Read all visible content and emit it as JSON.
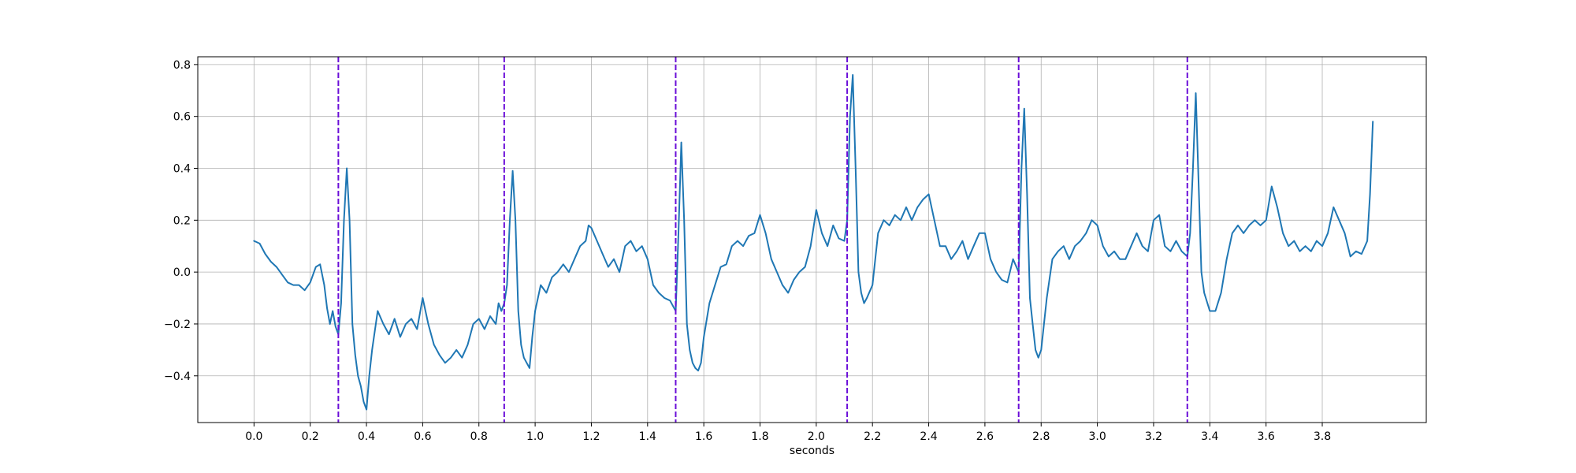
{
  "chart_data": {
    "type": "line",
    "xlabel": "seconds",
    "ylabel": "",
    "xlim": [
      -0.2,
      4.17
    ],
    "ylim": [
      -0.58,
      0.83
    ],
    "grid": true,
    "x_ticks": [
      0.0,
      0.2,
      0.4,
      0.6,
      0.8,
      1.0,
      1.2,
      1.4,
      1.6,
      1.8,
      2.0,
      2.2,
      2.4,
      2.6,
      2.8,
      3.0,
      3.2,
      3.4,
      3.6,
      3.8
    ],
    "x_tick_labels": [
      "0.0",
      "0.2",
      "0.4",
      "0.6",
      "0.8",
      "1.0",
      "1.2",
      "1.4",
      "1.6",
      "1.8",
      "2.0",
      "2.2",
      "2.4",
      "2.6",
      "2.8",
      "3.0",
      "3.2",
      "3.4",
      "3.6",
      "3.8"
    ],
    "y_ticks": [
      -0.4,
      -0.2,
      0.0,
      0.2,
      0.4,
      0.6,
      0.8
    ],
    "y_tick_labels": [
      "−0.4",
      "−0.2",
      "0.0",
      "0.2",
      "0.4",
      "0.6",
      "0.8"
    ],
    "vlines": {
      "style": "dashed",
      "color": "#6a0dd8",
      "x": [
        0.3,
        0.89,
        1.5,
        2.11,
        2.72,
        3.32
      ]
    },
    "series": [
      {
        "color": "#1f77b4",
        "points": [
          [
            0.0,
            0.12
          ],
          [
            0.02,
            0.11
          ],
          [
            0.04,
            0.07
          ],
          [
            0.06,
            0.04
          ],
          [
            0.08,
            0.02
          ],
          [
            0.1,
            -0.01
          ],
          [
            0.12,
            -0.04
          ],
          [
            0.14,
            -0.05
          ],
          [
            0.16,
            -0.05
          ],
          [
            0.18,
            -0.07
          ],
          [
            0.2,
            -0.04
          ],
          [
            0.22,
            0.02
          ],
          [
            0.235,
            0.03
          ],
          [
            0.25,
            -0.05
          ],
          [
            0.26,
            -0.14
          ],
          [
            0.27,
            -0.2
          ],
          [
            0.28,
            -0.15
          ],
          [
            0.29,
            -0.21
          ],
          [
            0.3,
            -0.24
          ],
          [
            0.31,
            -0.12
          ],
          [
            0.32,
            0.2
          ],
          [
            0.33,
            0.4
          ],
          [
            0.34,
            0.2
          ],
          [
            0.35,
            -0.2
          ],
          [
            0.36,
            -0.32
          ],
          [
            0.37,
            -0.4
          ],
          [
            0.38,
            -0.44
          ],
          [
            0.39,
            -0.5
          ],
          [
            0.4,
            -0.53
          ],
          [
            0.41,
            -0.4
          ],
          [
            0.42,
            -0.3
          ],
          [
            0.44,
            -0.15
          ],
          [
            0.46,
            -0.2
          ],
          [
            0.48,
            -0.24
          ],
          [
            0.5,
            -0.18
          ],
          [
            0.52,
            -0.25
          ],
          [
            0.54,
            -0.2
          ],
          [
            0.56,
            -0.18
          ],
          [
            0.58,
            -0.22
          ],
          [
            0.6,
            -0.1
          ],
          [
            0.62,
            -0.2
          ],
          [
            0.64,
            -0.28
          ],
          [
            0.66,
            -0.32
          ],
          [
            0.68,
            -0.35
          ],
          [
            0.7,
            -0.33
          ],
          [
            0.72,
            -0.3
          ],
          [
            0.74,
            -0.33
          ],
          [
            0.76,
            -0.28
          ],
          [
            0.78,
            -0.2
          ],
          [
            0.8,
            -0.18
          ],
          [
            0.82,
            -0.22
          ],
          [
            0.84,
            -0.17
          ],
          [
            0.86,
            -0.2
          ],
          [
            0.87,
            -0.12
          ],
          [
            0.88,
            -0.15
          ],
          [
            0.89,
            -0.12
          ],
          [
            0.9,
            -0.05
          ],
          [
            0.91,
            0.2
          ],
          [
            0.92,
            0.39
          ],
          [
            0.93,
            0.2
          ],
          [
            0.94,
            -0.15
          ],
          [
            0.95,
            -0.28
          ],
          [
            0.96,
            -0.33
          ],
          [
            0.97,
            -0.35
          ],
          [
            0.98,
            -0.37
          ],
          [
            0.99,
            -0.25
          ],
          [
            1.0,
            -0.15
          ],
          [
            1.02,
            -0.05
          ],
          [
            1.04,
            -0.08
          ],
          [
            1.06,
            -0.02
          ],
          [
            1.08,
            0.0
          ],
          [
            1.1,
            0.03
          ],
          [
            1.12,
            0.0
          ],
          [
            1.14,
            0.05
          ],
          [
            1.16,
            0.1
          ],
          [
            1.18,
            0.12
          ],
          [
            1.19,
            0.18
          ],
          [
            1.2,
            0.17
          ],
          [
            1.22,
            0.12
          ],
          [
            1.24,
            0.07
          ],
          [
            1.26,
            0.02
          ],
          [
            1.28,
            0.05
          ],
          [
            1.3,
            0.0
          ],
          [
            1.32,
            0.1
          ],
          [
            1.34,
            0.12
          ],
          [
            1.36,
            0.08
          ],
          [
            1.38,
            0.1
          ],
          [
            1.4,
            0.05
          ],
          [
            1.42,
            -0.05
          ],
          [
            1.44,
            -0.08
          ],
          [
            1.46,
            -0.1
          ],
          [
            1.48,
            -0.11
          ],
          [
            1.5,
            -0.15
          ],
          [
            1.51,
            0.15
          ],
          [
            1.52,
            0.5
          ],
          [
            1.53,
            0.2
          ],
          [
            1.54,
            -0.2
          ],
          [
            1.55,
            -0.3
          ],
          [
            1.56,
            -0.35
          ],
          [
            1.57,
            -0.37
          ],
          [
            1.58,
            -0.38
          ],
          [
            1.59,
            -0.35
          ],
          [
            1.6,
            -0.25
          ],
          [
            1.62,
            -0.12
          ],
          [
            1.64,
            -0.05
          ],
          [
            1.66,
            0.02
          ],
          [
            1.68,
            0.03
          ],
          [
            1.7,
            0.1
          ],
          [
            1.72,
            0.12
          ],
          [
            1.74,
            0.1
          ],
          [
            1.76,
            0.14
          ],
          [
            1.78,
            0.15
          ],
          [
            1.8,
            0.22
          ],
          [
            1.82,
            0.15
          ],
          [
            1.84,
            0.05
          ],
          [
            1.86,
            0.0
          ],
          [
            1.88,
            -0.05
          ],
          [
            1.9,
            -0.08
          ],
          [
            1.92,
            -0.03
          ],
          [
            1.94,
            0.0
          ],
          [
            1.96,
            0.02
          ],
          [
            1.98,
            0.1
          ],
          [
            2.0,
            0.24
          ],
          [
            2.02,
            0.15
          ],
          [
            2.04,
            0.1
          ],
          [
            2.06,
            0.18
          ],
          [
            2.08,
            0.13
          ],
          [
            2.1,
            0.12
          ],
          [
            2.11,
            0.2
          ],
          [
            2.12,
            0.6
          ],
          [
            2.13,
            0.76
          ],
          [
            2.14,
            0.4
          ],
          [
            2.15,
            0.0
          ],
          [
            2.16,
            -0.08
          ],
          [
            2.17,
            -0.12
          ],
          [
            2.18,
            -0.1
          ],
          [
            2.2,
            -0.05
          ],
          [
            2.22,
            0.15
          ],
          [
            2.24,
            0.2
          ],
          [
            2.26,
            0.18
          ],
          [
            2.28,
            0.22
          ],
          [
            2.3,
            0.2
          ],
          [
            2.32,
            0.25
          ],
          [
            2.34,
            0.2
          ],
          [
            2.36,
            0.25
          ],
          [
            2.38,
            0.28
          ],
          [
            2.4,
            0.3
          ],
          [
            2.42,
            0.2
          ],
          [
            2.44,
            0.1
          ],
          [
            2.46,
            0.1
          ],
          [
            2.48,
            0.05
          ],
          [
            2.5,
            0.08
          ],
          [
            2.52,
            0.12
          ],
          [
            2.54,
            0.05
          ],
          [
            2.56,
            0.1
          ],
          [
            2.58,
            0.15
          ],
          [
            2.6,
            0.15
          ],
          [
            2.62,
            0.05
          ],
          [
            2.64,
            0.0
          ],
          [
            2.66,
            -0.03
          ],
          [
            2.68,
            -0.04
          ],
          [
            2.7,
            0.05
          ],
          [
            2.72,
            0.0
          ],
          [
            2.73,
            0.4
          ],
          [
            2.74,
            0.63
          ],
          [
            2.75,
            0.3
          ],
          [
            2.76,
            -0.1
          ],
          [
            2.77,
            -0.2
          ],
          [
            2.78,
            -0.3
          ],
          [
            2.79,
            -0.33
          ],
          [
            2.8,
            -0.3
          ],
          [
            2.82,
            -0.1
          ],
          [
            2.84,
            0.05
          ],
          [
            2.86,
            0.08
          ],
          [
            2.88,
            0.1
          ],
          [
            2.9,
            0.05
          ],
          [
            2.92,
            0.1
          ],
          [
            2.94,
            0.12
          ],
          [
            2.96,
            0.15
          ],
          [
            2.98,
            0.2
          ],
          [
            3.0,
            0.18
          ],
          [
            3.02,
            0.1
          ],
          [
            3.04,
            0.06
          ],
          [
            3.06,
            0.08
          ],
          [
            3.08,
            0.05
          ],
          [
            3.1,
            0.05
          ],
          [
            3.12,
            0.1
          ],
          [
            3.14,
            0.15
          ],
          [
            3.16,
            0.1
          ],
          [
            3.18,
            0.08
          ],
          [
            3.2,
            0.2
          ],
          [
            3.22,
            0.22
          ],
          [
            3.24,
            0.1
          ],
          [
            3.26,
            0.08
          ],
          [
            3.28,
            0.12
          ],
          [
            3.3,
            0.08
          ],
          [
            3.32,
            0.06
          ],
          [
            3.33,
            0.15
          ],
          [
            3.34,
            0.4
          ],
          [
            3.35,
            0.69
          ],
          [
            3.36,
            0.35
          ],
          [
            3.37,
            0.0
          ],
          [
            3.38,
            -0.08
          ],
          [
            3.4,
            -0.15
          ],
          [
            3.42,
            -0.15
          ],
          [
            3.44,
            -0.08
          ],
          [
            3.46,
            0.05
          ],
          [
            3.48,
            0.15
          ],
          [
            3.5,
            0.18
          ],
          [
            3.52,
            0.15
          ],
          [
            3.54,
            0.18
          ],
          [
            3.56,
            0.2
          ],
          [
            3.58,
            0.18
          ],
          [
            3.6,
            0.2
          ],
          [
            3.62,
            0.33
          ],
          [
            3.64,
            0.25
          ],
          [
            3.66,
            0.15
          ],
          [
            3.68,
            0.1
          ],
          [
            3.7,
            0.12
          ],
          [
            3.72,
            0.08
          ],
          [
            3.74,
            0.1
          ],
          [
            3.76,
            0.08
          ],
          [
            3.78,
            0.12
          ],
          [
            3.8,
            0.1
          ],
          [
            3.82,
            0.15
          ],
          [
            3.84,
            0.25
          ],
          [
            3.86,
            0.2
          ],
          [
            3.88,
            0.15
          ],
          [
            3.9,
            0.06
          ],
          [
            3.92,
            0.08
          ],
          [
            3.94,
            0.07
          ],
          [
            3.96,
            0.12
          ],
          [
            3.97,
            0.3
          ],
          [
            3.98,
            0.58
          ]
        ]
      }
    ]
  }
}
